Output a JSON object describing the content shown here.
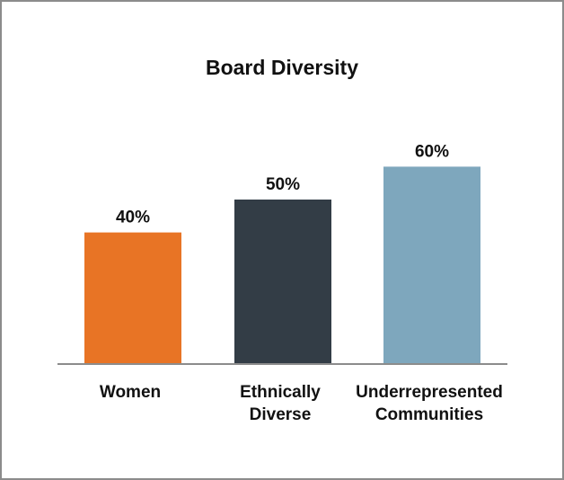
{
  "chart_data": {
    "type": "bar",
    "title": "Board Diversity",
    "categories": [
      [
        "Women"
      ],
      [
        "Ethnically",
        "Diverse"
      ],
      [
        "Underrepresented",
        "Communities"
      ]
    ],
    "values": [
      40,
      50,
      60
    ],
    "value_labels": [
      "40%",
      "50%",
      "60%"
    ],
    "colors": [
      "#e87425",
      "#333d46",
      "#7ea7bd"
    ],
    "ylim": [
      0,
      100
    ],
    "grid": false,
    "legend": "none"
  }
}
